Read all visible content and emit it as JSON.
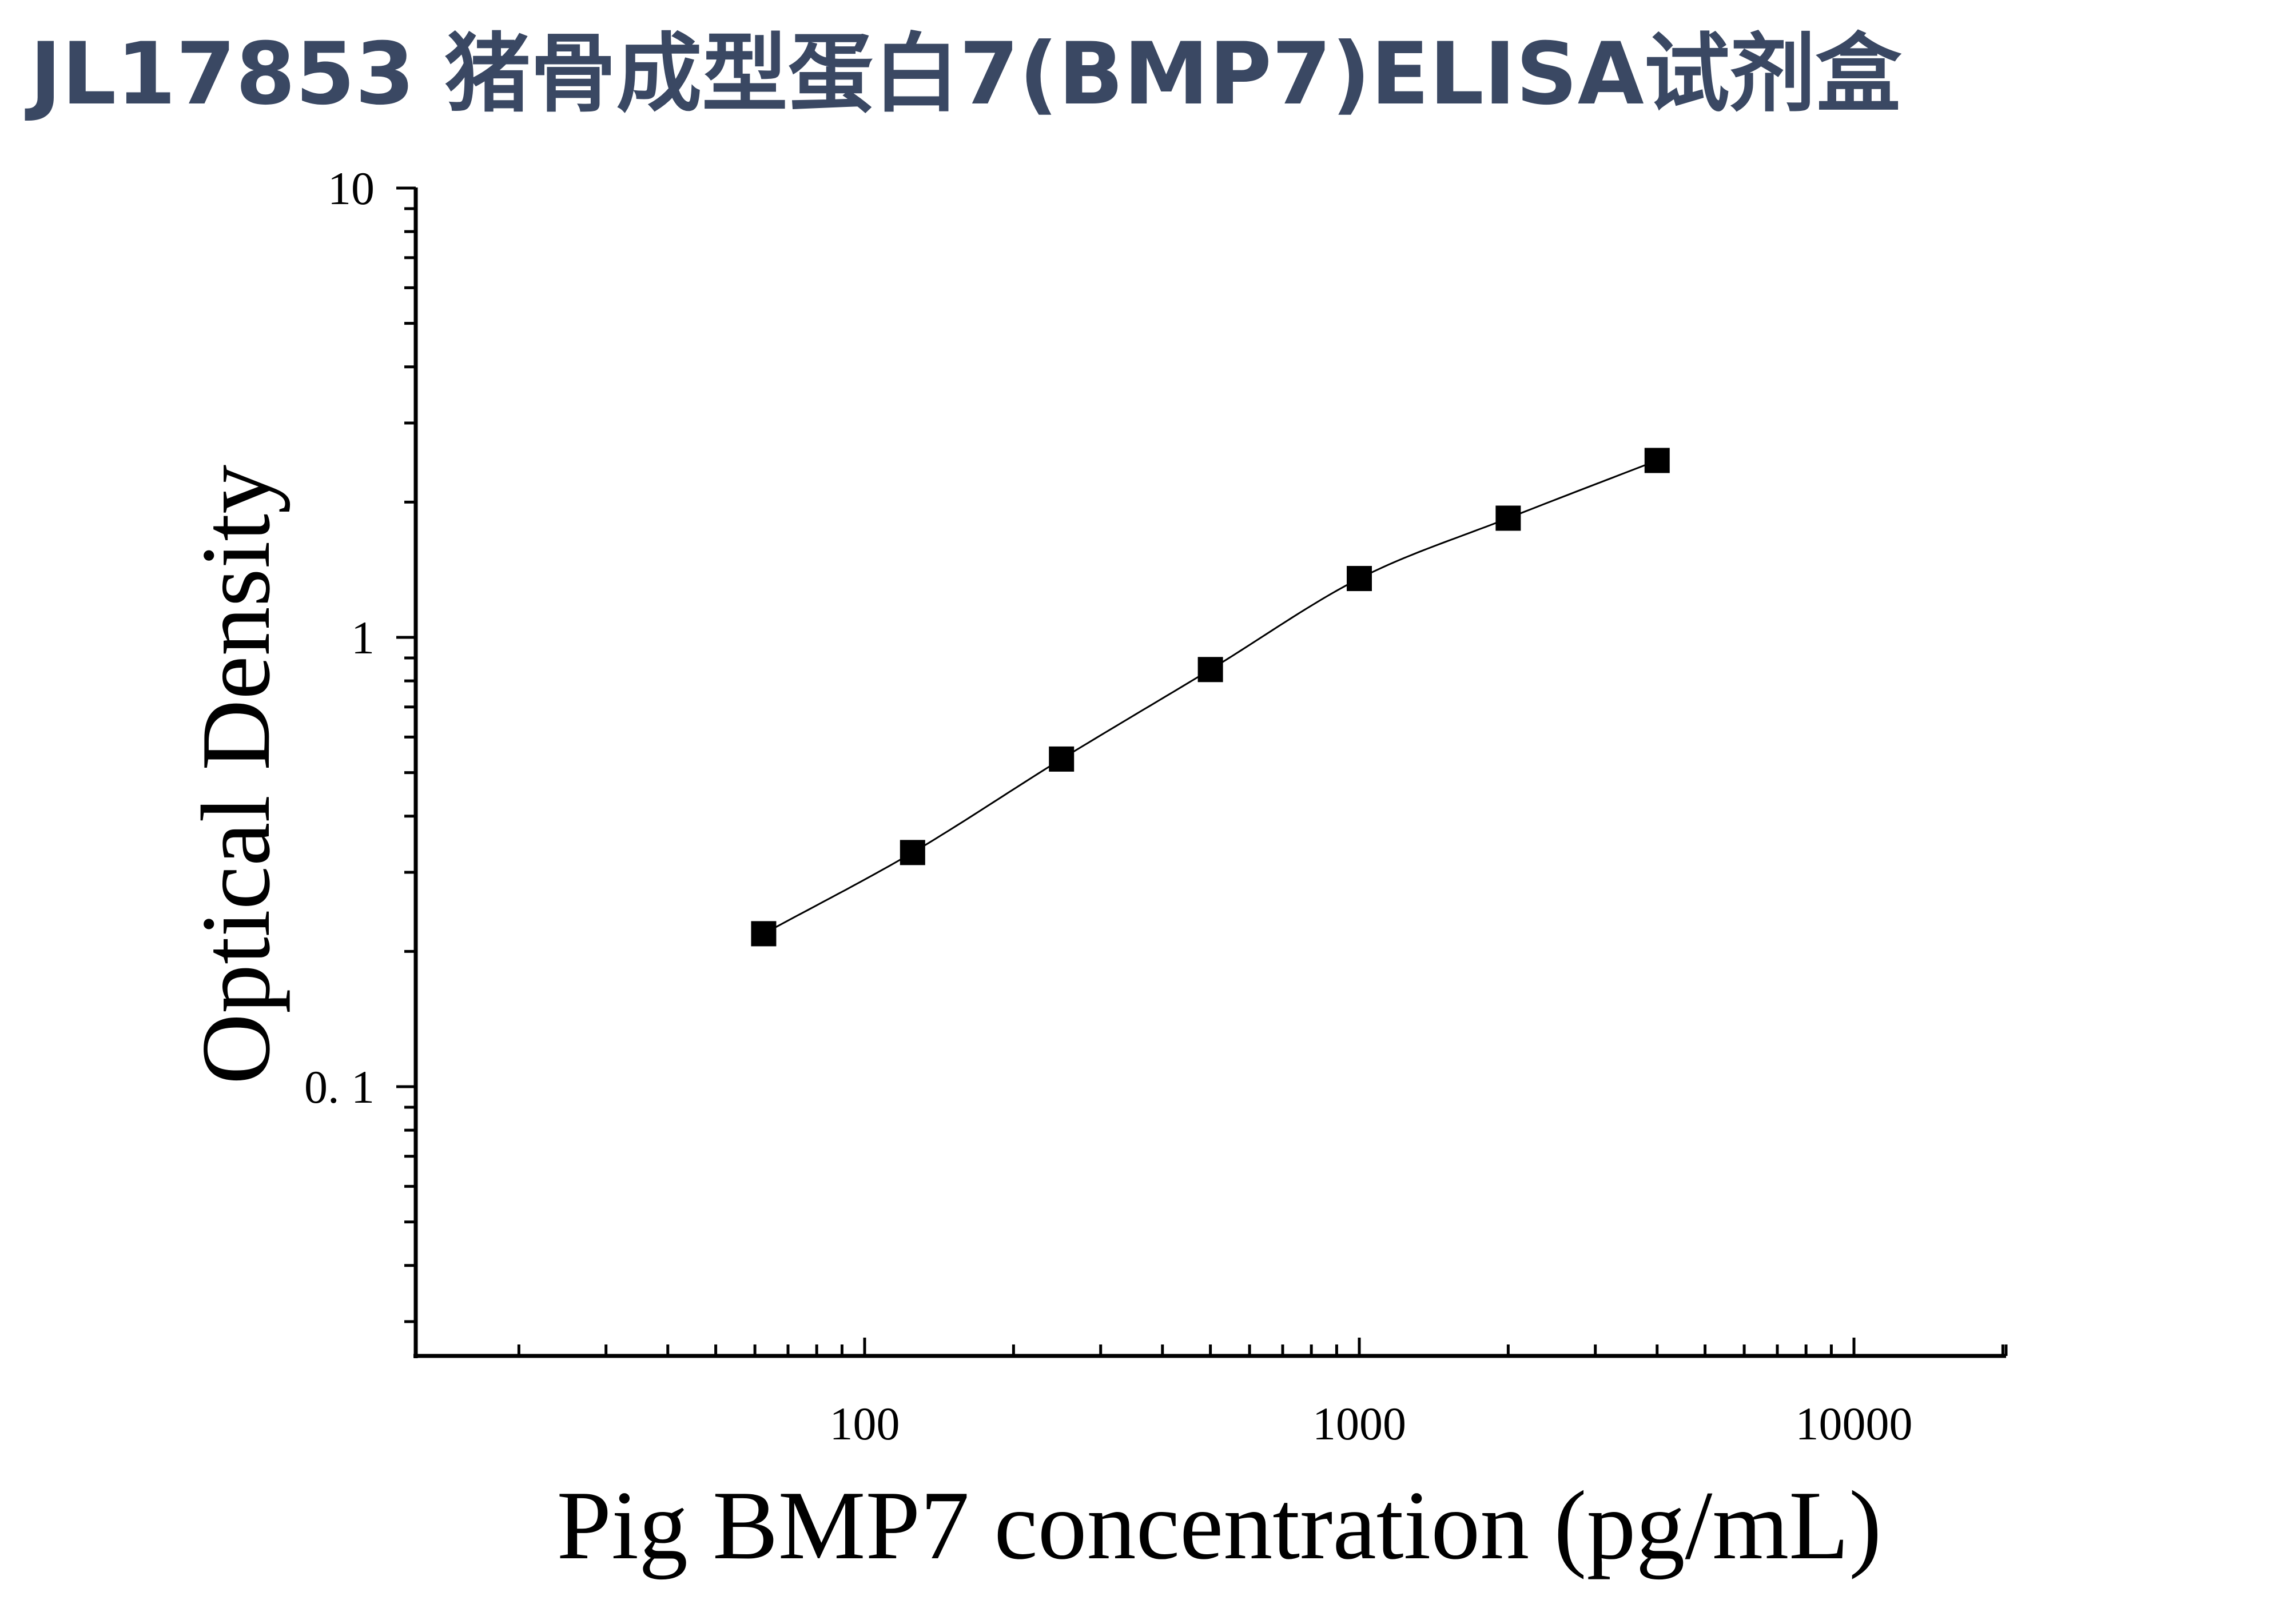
{
  "page_title": "JL17853 猪骨成型蛋白7(BMP7)ELISA试剂盒",
  "colors": {
    "title": "#3a4863",
    "axis": "#000000",
    "marker": "#000000"
  },
  "chart_data": {
    "type": "scatter",
    "title": "",
    "xlabel": "Pig BMP7 concentration (pg/mL)",
    "ylabel": "Optical Density",
    "xscale": "log",
    "yscale": "log",
    "xlim": [
      10,
      20000
    ],
    "ylim": [
      0.026,
      10
    ],
    "x_ticks": [
      {
        "value": 100,
        "label": "100"
      },
      {
        "value": 1000,
        "label": "1000"
      },
      {
        "value": 10000,
        "label": "10000"
      }
    ],
    "y_ticks": [
      {
        "value": 0.1,
        "label": "0. 1"
      },
      {
        "value": 1,
        "label": "1"
      },
      {
        "value": 10,
        "label": "10"
      }
    ],
    "grid": false,
    "legend": "none",
    "series": [
      {
        "x": [
          62.5,
          125,
          250,
          500,
          1000,
          2000,
          4000
        ],
        "y": [
          0.219,
          0.332,
          0.536,
          0.848,
          1.352,
          1.842,
          2.476
        ],
        "marker": "square",
        "fit_line": true
      }
    ]
  }
}
